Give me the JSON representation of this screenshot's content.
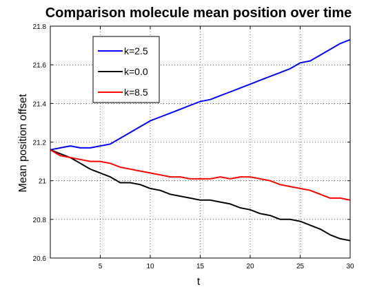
{
  "chart_data": {
    "type": "line",
    "title": "Comparison molecule mean position over time",
    "xlabel": "t",
    "ylabel": "Mean position offset",
    "xlim": [
      0,
      30
    ],
    "ylim": [
      20.6,
      21.8
    ],
    "xticks": [
      5,
      10,
      15,
      20,
      25,
      30
    ],
    "xtick_labels": [
      "5",
      "10",
      "15",
      "20",
      "25",
      "30"
    ],
    "yticks": [
      20.6,
      20.8,
      21,
      21.2,
      21.4,
      21.6,
      21.8
    ],
    "ytick_labels": [
      "20.6",
      "20.8",
      "21",
      "21.2",
      "21.4",
      "21.6",
      "21.8"
    ],
    "grid": true,
    "legend_position": "top-left",
    "series": [
      {
        "name": "k=2.5",
        "color": "#0000ff",
        "x": [
          0,
          1,
          2,
          3,
          4,
          5,
          6,
          7,
          8,
          9,
          10,
          11,
          12,
          13,
          14,
          15,
          16,
          17,
          18,
          19,
          20,
          21,
          22,
          23,
          24,
          25,
          26,
          27,
          28,
          29,
          30
        ],
        "y": [
          21.16,
          21.17,
          21.18,
          21.17,
          21.17,
          21.18,
          21.19,
          21.22,
          21.25,
          21.28,
          21.31,
          21.33,
          21.35,
          21.37,
          21.39,
          21.41,
          21.42,
          21.44,
          21.46,
          21.48,
          21.5,
          21.52,
          21.54,
          21.56,
          21.58,
          21.61,
          21.62,
          21.65,
          21.68,
          21.71,
          21.73
        ]
      },
      {
        "name": "k=0.0",
        "color": "#000000",
        "x": [
          0,
          1,
          2,
          3,
          4,
          5,
          6,
          7,
          8,
          9,
          10,
          11,
          12,
          13,
          14,
          15,
          16,
          17,
          18,
          19,
          20,
          21,
          22,
          23,
          24,
          25,
          26,
          27,
          28,
          29,
          30
        ],
        "y": [
          21.16,
          21.14,
          21.12,
          21.09,
          21.06,
          21.04,
          21.02,
          20.99,
          20.99,
          20.98,
          20.96,
          20.95,
          20.93,
          20.92,
          20.91,
          20.9,
          20.9,
          20.89,
          20.88,
          20.86,
          20.85,
          20.83,
          20.82,
          20.8,
          20.8,
          20.79,
          20.77,
          20.75,
          20.72,
          20.7,
          20.69
        ]
      },
      {
        "name": "k=8.5",
        "color": "#ff0000",
        "x": [
          0,
          1,
          2,
          3,
          4,
          5,
          6,
          7,
          8,
          9,
          10,
          11,
          12,
          13,
          14,
          15,
          16,
          17,
          18,
          19,
          20,
          21,
          22,
          23,
          24,
          25,
          26,
          27,
          28,
          29,
          30
        ],
        "y": [
          21.16,
          21.13,
          21.12,
          21.11,
          21.1,
          21.1,
          21.09,
          21.07,
          21.06,
          21.05,
          21.04,
          21.03,
          21.02,
          21.02,
          21.01,
          21.01,
          21.01,
          21.02,
          21.01,
          21.02,
          21.02,
          21.01,
          21.0,
          20.98,
          20.97,
          20.96,
          20.95,
          20.93,
          20.91,
          20.91,
          20.9
        ]
      }
    ]
  }
}
